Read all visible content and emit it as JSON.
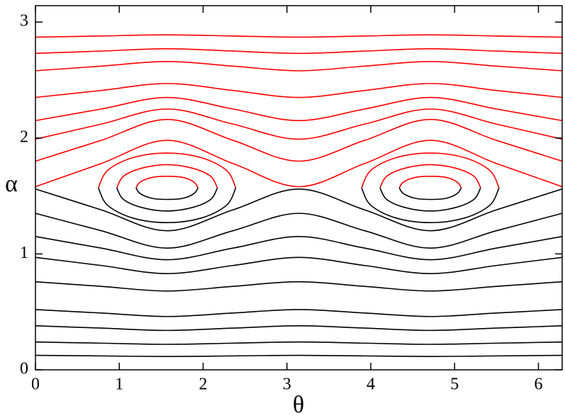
{
  "chart_data": {
    "type": "line",
    "x_label": "θ",
    "y_label": "α",
    "xlim": [
      0,
      6.283
    ],
    "ylim": [
      0,
      3.1416
    ],
    "xticks": [
      0,
      1,
      2,
      3,
      4,
      5,
      6
    ],
    "yticks": [
      0,
      1,
      2,
      3
    ],
    "series": [
      {
        "color": "#ff0000",
        "x": [
          0,
          0.785,
          1.571,
          2.356,
          3.142,
          3.927,
          4.712,
          5.498,
          6.283
        ],
        "values": [
          2.87,
          2.88,
          2.89,
          2.88,
          2.87,
          2.88,
          2.89,
          2.88,
          2.87
        ]
      },
      {
        "color": "#ff0000",
        "x": [
          0,
          0.785,
          1.571,
          2.356,
          3.142,
          3.927,
          4.712,
          5.498,
          6.283
        ],
        "values": [
          2.73,
          2.75,
          2.77,
          2.75,
          2.73,
          2.75,
          2.77,
          2.75,
          2.73
        ]
      },
      {
        "color": "#ff0000",
        "x": [
          0,
          0.785,
          1.571,
          2.356,
          3.142,
          3.927,
          4.712,
          5.498,
          6.283
        ],
        "values": [
          2.58,
          2.62,
          2.66,
          2.62,
          2.58,
          2.62,
          2.66,
          2.62,
          2.58
        ]
      },
      {
        "color": "#ff0000",
        "x": [
          0,
          0.785,
          1.571,
          2.356,
          3.142,
          3.927,
          4.712,
          5.498,
          6.283
        ],
        "values": [
          2.35,
          2.41,
          2.47,
          2.41,
          2.35,
          2.41,
          2.47,
          2.41,
          2.35
        ]
      },
      {
        "color": "#ff0000",
        "x": [
          0,
          0.785,
          1.571,
          2.356,
          3.142,
          3.927,
          4.712,
          5.498,
          6.283
        ],
        "values": [
          2.15,
          2.25,
          2.35,
          2.25,
          2.15,
          2.25,
          2.35,
          2.25,
          2.15
        ]
      },
      {
        "color": "#ff0000",
        "x": [
          0,
          0.785,
          1.571,
          2.356,
          3.142,
          3.927,
          4.712,
          5.498,
          6.283
        ],
        "values": [
          1.99,
          2.12,
          2.25,
          2.12,
          1.99,
          2.12,
          2.25,
          2.12,
          1.99
        ]
      },
      {
        "color": "#ff0000",
        "x": [
          0,
          0.785,
          1.571,
          2.356,
          3.142,
          3.927,
          4.712,
          5.498,
          6.283
        ],
        "values": [
          1.8,
          1.98,
          2.16,
          1.98,
          1.8,
          1.98,
          2.16,
          1.98,
          1.8
        ]
      },
      {
        "color": "#ff0000",
        "x": [
          0,
          0.785,
          1.571,
          2.356,
          3.142,
          3.927,
          4.712,
          5.498,
          6.283
        ],
        "values": [
          1.58,
          1.78,
          1.98,
          1.78,
          1.58,
          1.78,
          1.98,
          1.78,
          1.58
        ]
      },
      {
        "color": "#000000",
        "x": [
          0,
          0.785,
          1.571,
          2.356,
          3.142,
          3.927,
          4.712,
          5.498,
          6.283
        ],
        "values": [
          0.125,
          0.12,
          0.115,
          0.12,
          0.125,
          0.12,
          0.115,
          0.12,
          0.125
        ]
      },
      {
        "color": "#000000",
        "x": [
          0,
          0.785,
          1.571,
          2.356,
          3.142,
          3.927,
          4.712,
          5.498,
          6.283
        ],
        "values": [
          0.24,
          0.23,
          0.22,
          0.23,
          0.24,
          0.23,
          0.22,
          0.23,
          0.24
        ]
      },
      {
        "color": "#000000",
        "x": [
          0,
          0.785,
          1.571,
          2.356,
          3.142,
          3.927,
          4.712,
          5.498,
          6.283
        ],
        "values": [
          0.38,
          0.36,
          0.34,
          0.36,
          0.38,
          0.36,
          0.34,
          0.36,
          0.38
        ]
      },
      {
        "color": "#000000",
        "x": [
          0,
          0.785,
          1.571,
          2.356,
          3.142,
          3.927,
          4.712,
          5.498,
          6.283
        ],
        "values": [
          0.52,
          0.49,
          0.46,
          0.49,
          0.52,
          0.49,
          0.46,
          0.49,
          0.52
        ]
      },
      {
        "color": "#000000",
        "x": [
          0,
          0.785,
          1.571,
          2.356,
          3.142,
          3.927,
          4.712,
          5.498,
          6.283
        ],
        "values": [
          0.76,
          0.72,
          0.68,
          0.72,
          0.76,
          0.72,
          0.68,
          0.72,
          0.76
        ]
      },
      {
        "color": "#000000",
        "x": [
          0,
          0.785,
          1.571,
          2.356,
          3.142,
          3.927,
          4.712,
          5.498,
          6.283
        ],
        "values": [
          0.97,
          0.9,
          0.83,
          0.9,
          0.97,
          0.9,
          0.83,
          0.9,
          0.97
        ]
      },
      {
        "color": "#000000",
        "x": [
          0,
          0.785,
          1.571,
          2.356,
          3.142,
          3.927,
          4.712,
          5.498,
          6.283
        ],
        "values": [
          1.15,
          1.05,
          0.95,
          1.05,
          1.15,
          1.05,
          0.95,
          1.05,
          1.15
        ]
      },
      {
        "color": "#000000",
        "x": [
          0,
          0.785,
          1.571,
          2.356,
          3.142,
          3.927,
          4.712,
          5.498,
          6.283
        ],
        "values": [
          1.35,
          1.2,
          1.05,
          1.2,
          1.35,
          1.2,
          1.05,
          1.2,
          1.35
        ]
      },
      {
        "color": "#000000",
        "x": [
          0,
          0.785,
          1.571,
          2.356,
          3.142,
          3.927,
          4.712,
          5.498,
          6.283
        ],
        "values": [
          1.56,
          1.38,
          1.2,
          1.38,
          1.56,
          1.38,
          1.2,
          1.38,
          1.56
        ]
      },
      {
        "color": "#ff0000",
        "x": [
          1.94,
          1.89,
          1.76,
          1.57,
          1.39,
          1.25,
          1.2
        ],
        "values": [
          1.57,
          1.62,
          1.66,
          1.67,
          1.66,
          1.62,
          1.57
        ]
      },
      {
        "color": "#000000",
        "x": [
          1.2,
          1.25,
          1.39,
          1.57,
          1.76,
          1.89,
          1.94
        ],
        "values": [
          1.57,
          1.52,
          1.48,
          1.47,
          1.48,
          1.52,
          1.57
        ]
      },
      {
        "color": "#ff0000",
        "x": [
          2.17,
          2.09,
          1.87,
          1.57,
          1.27,
          1.05,
          0.97
        ],
        "values": [
          1.57,
          1.67,
          1.74,
          1.77,
          1.74,
          1.67,
          1.57
        ]
      },
      {
        "color": "#000000",
        "x": [
          0.97,
          1.05,
          1.27,
          1.57,
          1.87,
          2.09,
          2.17
        ],
        "values": [
          1.57,
          1.47,
          1.4,
          1.37,
          1.4,
          1.47,
          1.57
        ]
      },
      {
        "color": "#ff0000",
        "x": [
          2.39,
          2.28,
          1.98,
          1.57,
          1.16,
          0.86,
          0.75
        ],
        "values": [
          1.57,
          1.72,
          1.83,
          1.87,
          1.83,
          1.72,
          1.57
        ]
      },
      {
        "color": "#000000",
        "x": [
          0.75,
          0.86,
          1.16,
          1.57,
          1.98,
          2.28,
          2.39
        ],
        "values": [
          1.57,
          1.42,
          1.31,
          1.27,
          1.31,
          1.42,
          1.57
        ]
      },
      {
        "color": "#ff0000",
        "x": [
          5.08,
          5.03,
          4.9,
          4.71,
          4.53,
          4.39,
          4.34
        ],
        "values": [
          1.57,
          1.62,
          1.66,
          1.67,
          1.66,
          1.62,
          1.57
        ]
      },
      {
        "color": "#000000",
        "x": [
          4.34,
          4.39,
          4.53,
          4.71,
          4.9,
          5.03,
          5.08
        ],
        "values": [
          1.57,
          1.52,
          1.48,
          1.47,
          1.48,
          1.52,
          1.57
        ]
      },
      {
        "color": "#ff0000",
        "x": [
          5.31,
          5.23,
          5.01,
          4.71,
          4.41,
          4.19,
          4.11
        ],
        "values": [
          1.57,
          1.67,
          1.74,
          1.77,
          1.74,
          1.67,
          1.57
        ]
      },
      {
        "color": "#000000",
        "x": [
          4.11,
          4.19,
          4.41,
          4.71,
          5.01,
          5.23,
          5.31
        ],
        "values": [
          1.57,
          1.47,
          1.4,
          1.37,
          1.4,
          1.47,
          1.57
        ]
      },
      {
        "color": "#ff0000",
        "x": [
          5.53,
          5.42,
          5.12,
          4.71,
          4.3,
          4.0,
          3.89
        ],
        "values": [
          1.57,
          1.72,
          1.83,
          1.87,
          1.83,
          1.72,
          1.57
        ]
      },
      {
        "color": "#000000",
        "x": [
          3.89,
          4.0,
          4.3,
          4.71,
          5.12,
          5.42,
          5.53
        ],
        "values": [
          1.57,
          1.42,
          1.31,
          1.27,
          1.31,
          1.42,
          1.57
        ]
      }
    ]
  }
}
